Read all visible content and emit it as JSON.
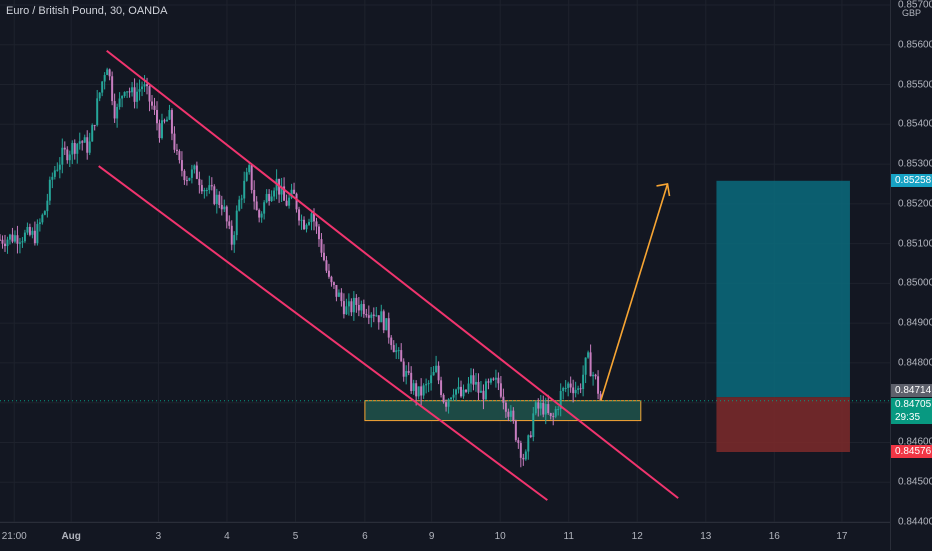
{
  "header": {
    "title": "Euro / British Pound, 30, OANDA",
    "currency": "GBP"
  },
  "chart_data": {
    "type": "candlestick",
    "yticks": [
      "0.85700",
      "0.85600",
      "0.85500",
      "0.85400",
      "0.85300",
      "0.85200",
      "0.85100",
      "0.85000",
      "0.84900",
      "0.84800",
      "0.84700",
      "0.84600",
      "0.84500",
      "0.84400"
    ],
    "ylim": [
      0.844,
      0.857
    ],
    "xticks": [
      "21:00",
      "Aug",
      "3",
      "4",
      "5",
      "6",
      "9",
      "10",
      "11",
      "12",
      "13",
      "16",
      "17"
    ],
    "price_badges": {
      "target": "0.85258",
      "last_close": "0.84714",
      "current": "0.84705",
      "countdown": "29:35",
      "stop": "0.84576"
    },
    "close_path": [
      [
        0,
        0.8511
      ],
      [
        0.02,
        0.8512
      ],
      [
        0.04,
        0.8512
      ],
      [
        0.05,
        0.8518
      ],
      [
        0.06,
        0.8528
      ],
      [
        0.07,
        0.8532
      ],
      [
        0.09,
        0.8536
      ],
      [
        0.1,
        0.8534
      ],
      [
        0.11,
        0.8546
      ],
      [
        0.12,
        0.8556
      ],
      [
        0.13,
        0.8542
      ],
      [
        0.14,
        0.855
      ],
      [
        0.15,
        0.8547
      ],
      [
        0.16,
        0.855
      ],
      [
        0.17,
        0.8545
      ],
      [
        0.18,
        0.8538
      ],
      [
        0.19,
        0.8542
      ],
      [
        0.2,
        0.853
      ],
      [
        0.21,
        0.8527
      ],
      [
        0.22,
        0.8528
      ],
      [
        0.23,
        0.8524
      ],
      [
        0.24,
        0.8522
      ],
      [
        0.25,
        0.852
      ],
      [
        0.26,
        0.851
      ],
      [
        0.27,
        0.8522
      ],
      [
        0.28,
        0.8528
      ],
      [
        0.29,
        0.8516
      ],
      [
        0.3,
        0.8522
      ],
      [
        0.31,
        0.8526
      ],
      [
        0.32,
        0.852
      ],
      [
        0.33,
        0.8522
      ],
      [
        0.34,
        0.8515
      ],
      [
        0.35,
        0.8518
      ],
      [
        0.36,
        0.851
      ],
      [
        0.37,
        0.85
      ],
      [
        0.38,
        0.8497
      ],
      [
        0.39,
        0.8493
      ],
      [
        0.4,
        0.8495
      ],
      [
        0.41,
        0.8494
      ],
      [
        0.42,
        0.8493
      ],
      [
        0.43,
        0.8491
      ],
      [
        0.44,
        0.8486
      ],
      [
        0.45,
        0.848
      ],
      [
        0.46,
        0.8475
      ],
      [
        0.47,
        0.8472
      ],
      [
        0.48,
        0.8474
      ],
      [
        0.49,
        0.8478
      ],
      [
        0.5,
        0.847
      ],
      [
        0.51,
        0.8474
      ],
      [
        0.52,
        0.8471
      ],
      [
        0.53,
        0.8476
      ],
      [
        0.54,
        0.8472
      ],
      [
        0.55,
        0.8474
      ],
      [
        0.56,
        0.8475
      ],
      [
        0.57,
        0.8469
      ],
      [
        0.58,
        0.8462
      ],
      [
        0.59,
        0.8455
      ],
      [
        0.6,
        0.8468
      ],
      [
        0.61,
        0.8469
      ],
      [
        0.62,
        0.8465
      ],
      [
        0.63,
        0.8472
      ],
      [
        0.64,
        0.8475
      ],
      [
        0.65,
        0.8473
      ],
      [
        0.66,
        0.8481
      ],
      [
        0.67,
        0.8475
      ],
      [
        0.675,
        0.84705
      ]
    ],
    "channel": {
      "upper": [
        [
          0.03,
          0.85295
        ],
        [
          0.45,
          0.84435
        ]
      ],
      "lower": [
        [
          0.006,
          0.85585
        ],
        [
          0.45,
          0.84465
        ]
      ]
    },
    "zone": {
      "x": [
        0.41,
        0.72
      ],
      "y": [
        0.84655,
        0.84705
      ]
    },
    "forecast_arrow": {
      "from": [
        0.675,
        0.84705
      ],
      "to": [
        0.75,
        0.8525
      ]
    },
    "position": {
      "x": [
        0.805,
        0.955
      ],
      "entry": 0.84714,
      "target": 0.85258,
      "stop": 0.84576
    }
  },
  "colors": {
    "background": "#131722",
    "bull": "#26a69a",
    "bear": "#c77dbf",
    "channel": "#f0346e",
    "arrow": "#f7a533",
    "zone_fill": "#1d4a45",
    "zone_border": "#f7a533",
    "profit": "#0a6b7c",
    "loss": "#7e2a2a",
    "target_badge": "#17a2c4",
    "current_badge": "#089981",
    "stop_badge": "#f23645",
    "last_badge": "#5d606b"
  }
}
